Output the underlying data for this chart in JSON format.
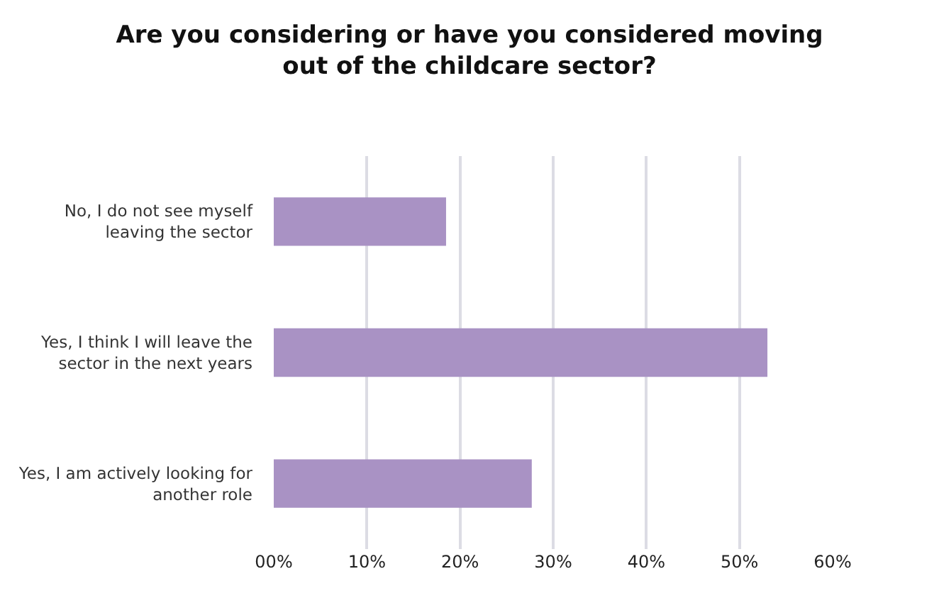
{
  "chart_data": {
    "type": "bar",
    "orientation": "horizontal",
    "title": "Are you considering or have you considered moving out of the childcare sector?",
    "categories": [
      "No, I do not see myself leaving the sector",
      "Yes, I think I will leave the sector in the next years",
      "Yes, I am actively looking for another role"
    ],
    "values": [
      18.5,
      53,
      27.7
    ],
    "color": "#a992c4",
    "xlim": [
      0,
      60
    ],
    "xticks": [
      {
        "value": 0,
        "label": "00%"
      },
      {
        "value": 10,
        "label": "10%"
      },
      {
        "value": 20,
        "label": "20%"
      },
      {
        "value": 30,
        "label": "30%"
      },
      {
        "value": 40,
        "label": "40%"
      },
      {
        "value": 50,
        "label": "50%"
      },
      {
        "value": 60,
        "label": "60%"
      }
    ],
    "grid": "x",
    "legend": false
  }
}
